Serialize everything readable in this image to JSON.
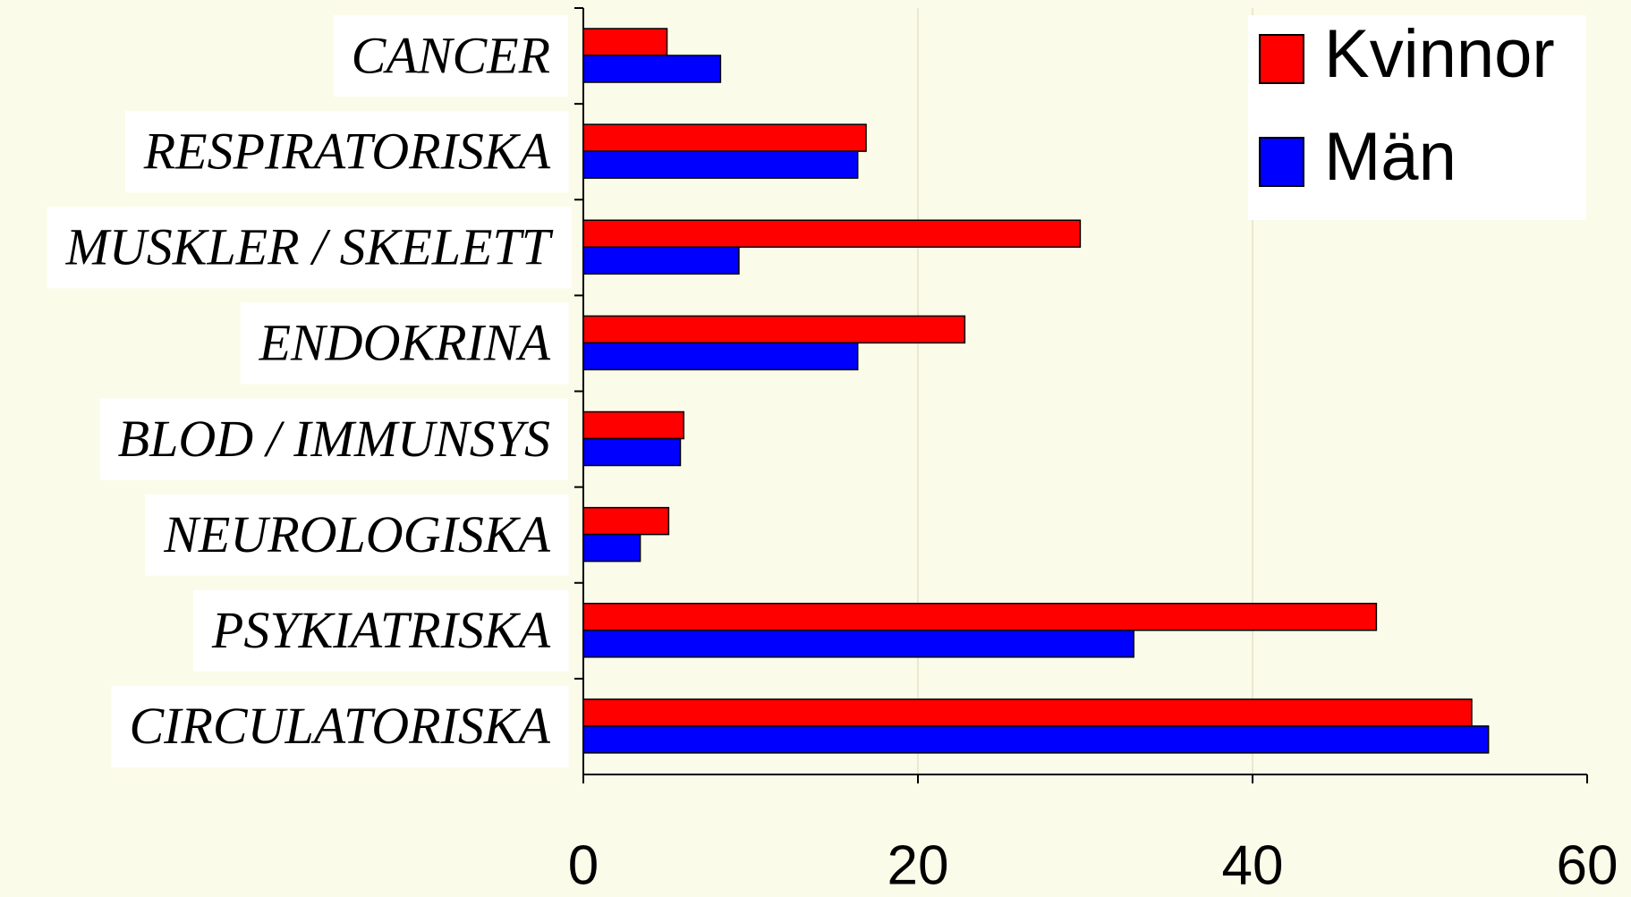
{
  "chart_data": {
    "type": "hbar",
    "categories": [
      "CANCER",
      "RESPIRATORISKA",
      "MUSKLER / SKELETT",
      "ENDOKRINA",
      "BLOD / IMMUNSYS",
      "NEUROLOGISKA",
      "PSYKIATRISKA",
      "CIRCULATORISKA"
    ],
    "series": [
      {
        "name": "Kvinnor",
        "color": "#ff0000",
        "values": [
          5.0,
          16.9,
          29.7,
          22.8,
          6.0,
          5.1,
          47.4,
          53.1
        ]
      },
      {
        "name": "Män",
        "color": "#0000ff",
        "values": [
          8.2,
          16.4,
          9.3,
          16.4,
          5.8,
          3.4,
          32.9,
          54.1
        ]
      }
    ],
    "xlim": [
      0,
      60
    ],
    "xticks": [
      0,
      20,
      40,
      60
    ],
    "grid": true
  }
}
